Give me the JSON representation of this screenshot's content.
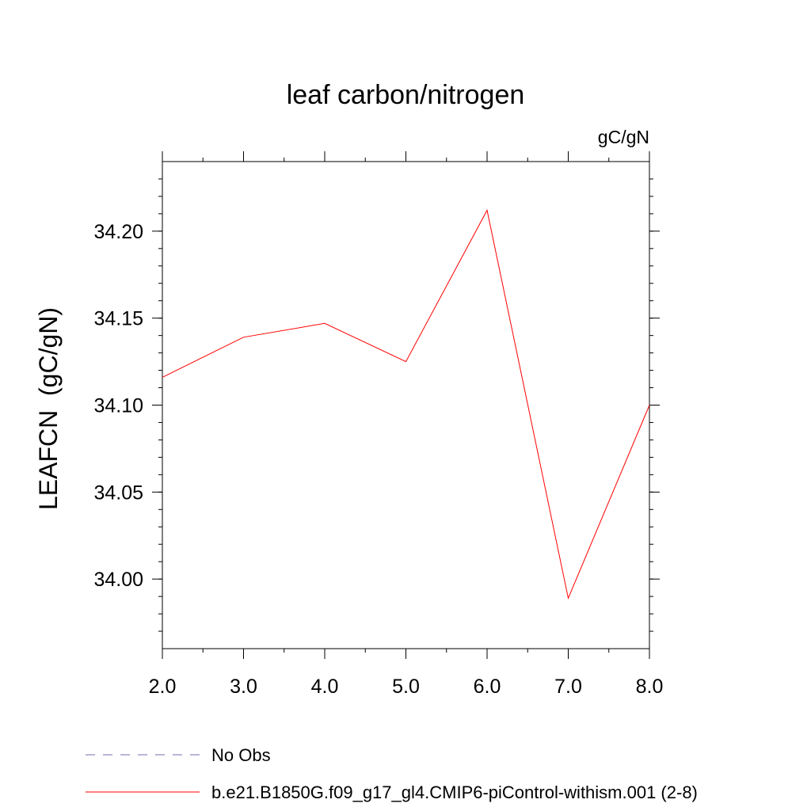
{
  "chart_data": {
    "type": "line",
    "title": "leaf carbon/nitrogen",
    "units_label": "gC/gN",
    "ylabel": "LEAFCN  (gC/gN)",
    "xlabel": "",
    "xlim": [
      2.0,
      8.0
    ],
    "ylim": [
      33.96,
      34.24
    ],
    "x_ticks": [
      2,
      3,
      4,
      5,
      6,
      7,
      8
    ],
    "x_tick_labels": [
      "2.0",
      "3.0",
      "4.0",
      "5.0",
      "6.0",
      "7.0",
      "8.0"
    ],
    "y_ticks": [
      34.0,
      34.05,
      34.1,
      34.15,
      34.2
    ],
    "y_tick_labels": [
      "34.00",
      "34.05",
      "34.10",
      "34.15",
      "34.20"
    ],
    "y_minor_step": 0.01,
    "x_minor_step": 0.5,
    "grid": false,
    "legend_position": "bottom",
    "series": [
      {
        "name": "b.e21.B1850G.f09_g17_gl4.CMIP6-piControl-withism.001 (2-8)",
        "color": "#ff0000",
        "dash": "solid",
        "x": [
          2,
          3,
          4,
          5,
          6,
          7,
          8
        ],
        "values": [
          34.116,
          34.139,
          34.147,
          34.125,
          34.212,
          33.989,
          34.1
        ]
      }
    ],
    "legend": [
      {
        "label": "No Obs",
        "color": "#7b68b0",
        "dash": "dashed"
      },
      {
        "label": "b.e21.B1850G.f09_g17_gl4.CMIP6-piControl-withism.001 (2-8)",
        "color": "#ff0000",
        "dash": "solid"
      }
    ]
  }
}
